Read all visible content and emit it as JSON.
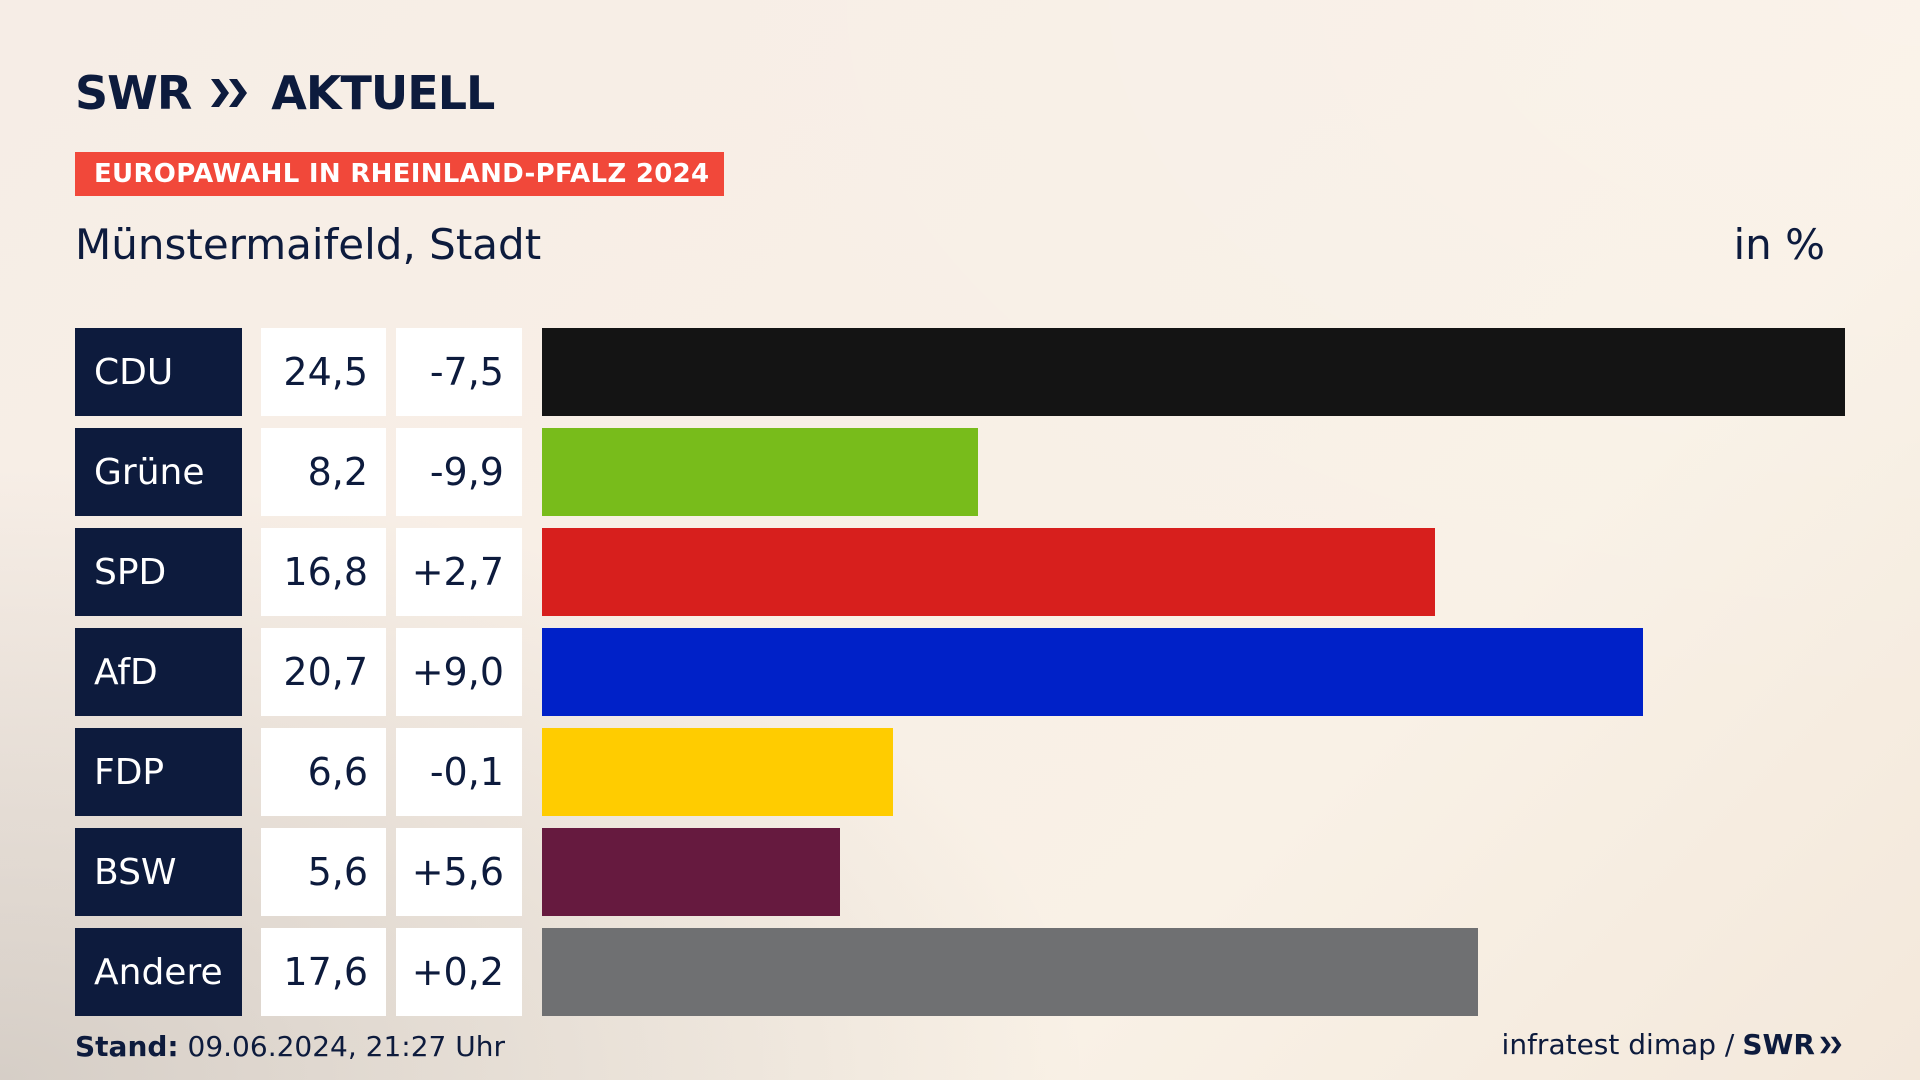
{
  "header": {
    "logo_text_left": "SWR",
    "logo_text_right": "AKTUELL",
    "banner": "EUROPAWAHL IN RHEINLAND-PFALZ 2024",
    "subtitle": "Münstermaifeld, Stadt",
    "unit": "in %"
  },
  "footer": {
    "stand_label": "Stand:",
    "stand_value": "09.06.2024, 21:27 Uhr",
    "source": "infratest dimap /",
    "brand": "SWR"
  },
  "colors": {
    "navy": "#0d1b3d",
    "banner": "#f1483a"
  },
  "chart_data": {
    "type": "bar",
    "orientation": "horizontal",
    "title": "Münstermaifeld, Stadt",
    "unit": "in %",
    "categories": [
      "CDU",
      "Grüne",
      "SPD",
      "AfD",
      "FDP",
      "BSW",
      "Andere"
    ],
    "values": [
      24.5,
      8.2,
      16.8,
      20.7,
      6.6,
      5.6,
      17.6
    ],
    "value_labels": [
      "24,5",
      "8,2",
      "16,8",
      "20,7",
      "6,6",
      "5,6",
      "17,6"
    ],
    "diff_labels": [
      "-7,5",
      "-9,9",
      "+2,7",
      "+9,0",
      "-0,1",
      "+5,6",
      "+0,2"
    ],
    "bar_colors": [
      "#141414",
      "#78bc1b",
      "#d71f1d",
      "#0021c8",
      "#ffcc00",
      "#661a3f",
      "#6f7072"
    ],
    "xlim": [
      0,
      24.5
    ]
  }
}
